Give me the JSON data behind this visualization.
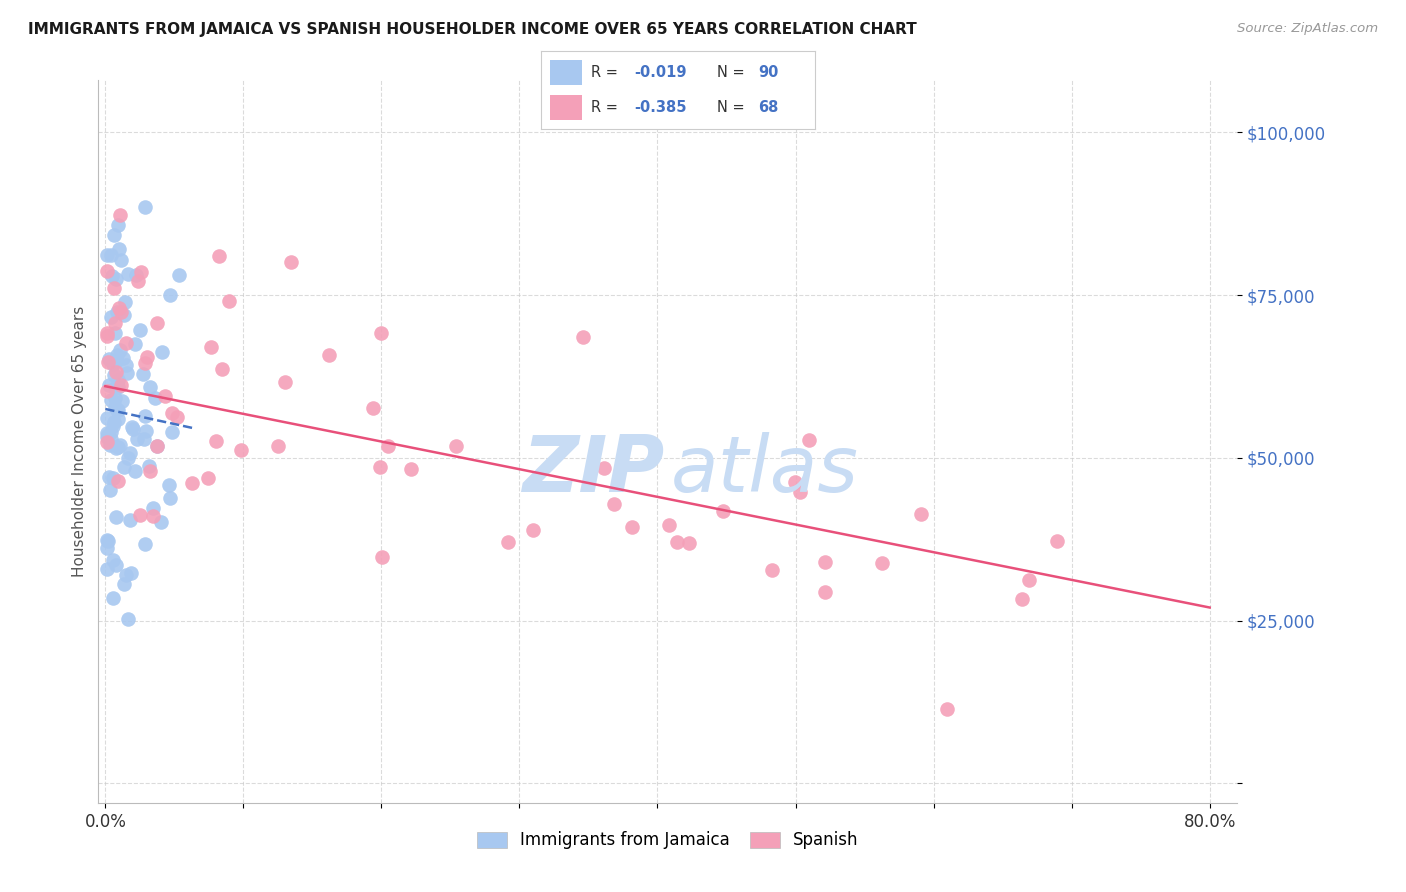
{
  "title": "IMMIGRANTS FROM JAMAICA VS SPANISH HOUSEHOLDER INCOME OVER 65 YEARS CORRELATION CHART",
  "source": "Source: ZipAtlas.com",
  "ylabel": "Householder Income Over 65 years",
  "legend_label1": "Immigrants from Jamaica",
  "legend_label2": "Spanish",
  "R1": -0.019,
  "N1": 90,
  "R2": -0.385,
  "N2": 68,
  "color_blue": "#A8C8F0",
  "color_pink": "#F4A0B8",
  "color_blue_line": "#4472C4",
  "color_pink_line": "#E8507A",
  "color_tick_label": "#4472C4",
  "watermark_color": "#C8DCF4",
  "background_color": "#FFFFFF",
  "grid_color": "#CCCCCC",
  "xlim": [
    0.0,
    0.8
  ],
  "ylim": [
    0,
    105000
  ],
  "y_ticks": [
    0,
    25000,
    50000,
    75000,
    100000
  ],
  "y_tick_labels": [
    "",
    "$25,000",
    "$50,000",
    "$75,000",
    "$100,000"
  ],
  "x_ticks": [
    0.0,
    0.1,
    0.2,
    0.3,
    0.4,
    0.5,
    0.6,
    0.7,
    0.8
  ],
  "x_tick_labels_show": [
    "0.0%",
    "",
    "",
    "",
    "",
    "",
    "",
    "",
    "80.0%"
  ],
  "blue_intercept": 57500,
  "blue_slope": -15000,
  "pink_intercept": 62000,
  "pink_slope": -45000
}
